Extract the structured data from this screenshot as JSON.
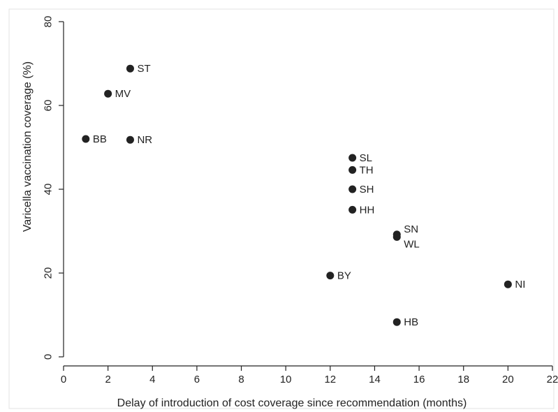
{
  "chart_data": {
    "type": "scatter",
    "title": "",
    "xlabel": "Delay of introduction of cost coverage since recommendation (months)",
    "ylabel": "Varicella vaccination coverage (%)",
    "xlim": [
      0,
      22
    ],
    "ylim": [
      0,
      80
    ],
    "xticks": [
      0,
      2,
      4,
      6,
      8,
      10,
      12,
      14,
      16,
      18,
      20,
      22
    ],
    "yticks": [
      0,
      20,
      40,
      60,
      80
    ],
    "grid": false,
    "legend": "none",
    "point_color": "#222222",
    "points": [
      {
        "label": "ST",
        "x": 3,
        "y": 68.8
      },
      {
        "label": "MV",
        "x": 2,
        "y": 62.8
      },
      {
        "label": "BB",
        "x": 1,
        "y": 52.0
      },
      {
        "label": "NR",
        "x": 3,
        "y": 51.8
      },
      {
        "label": "SL",
        "x": 13,
        "y": 47.5
      },
      {
        "label": "TH",
        "x": 13,
        "y": 44.6
      },
      {
        "label": "SH",
        "x": 13,
        "y": 40.0
      },
      {
        "label": "HH",
        "x": 13,
        "y": 35.1
      },
      {
        "label": "SN",
        "x": 15,
        "y": 29.2
      },
      {
        "label": "WL",
        "x": 15,
        "y": 28.6
      },
      {
        "label": "BY",
        "x": 12,
        "y": 19.4
      },
      {
        "label": "NI",
        "x": 20,
        "y": 17.3
      },
      {
        "label": "HB",
        "x": 15,
        "y": 8.3
      }
    ]
  }
}
